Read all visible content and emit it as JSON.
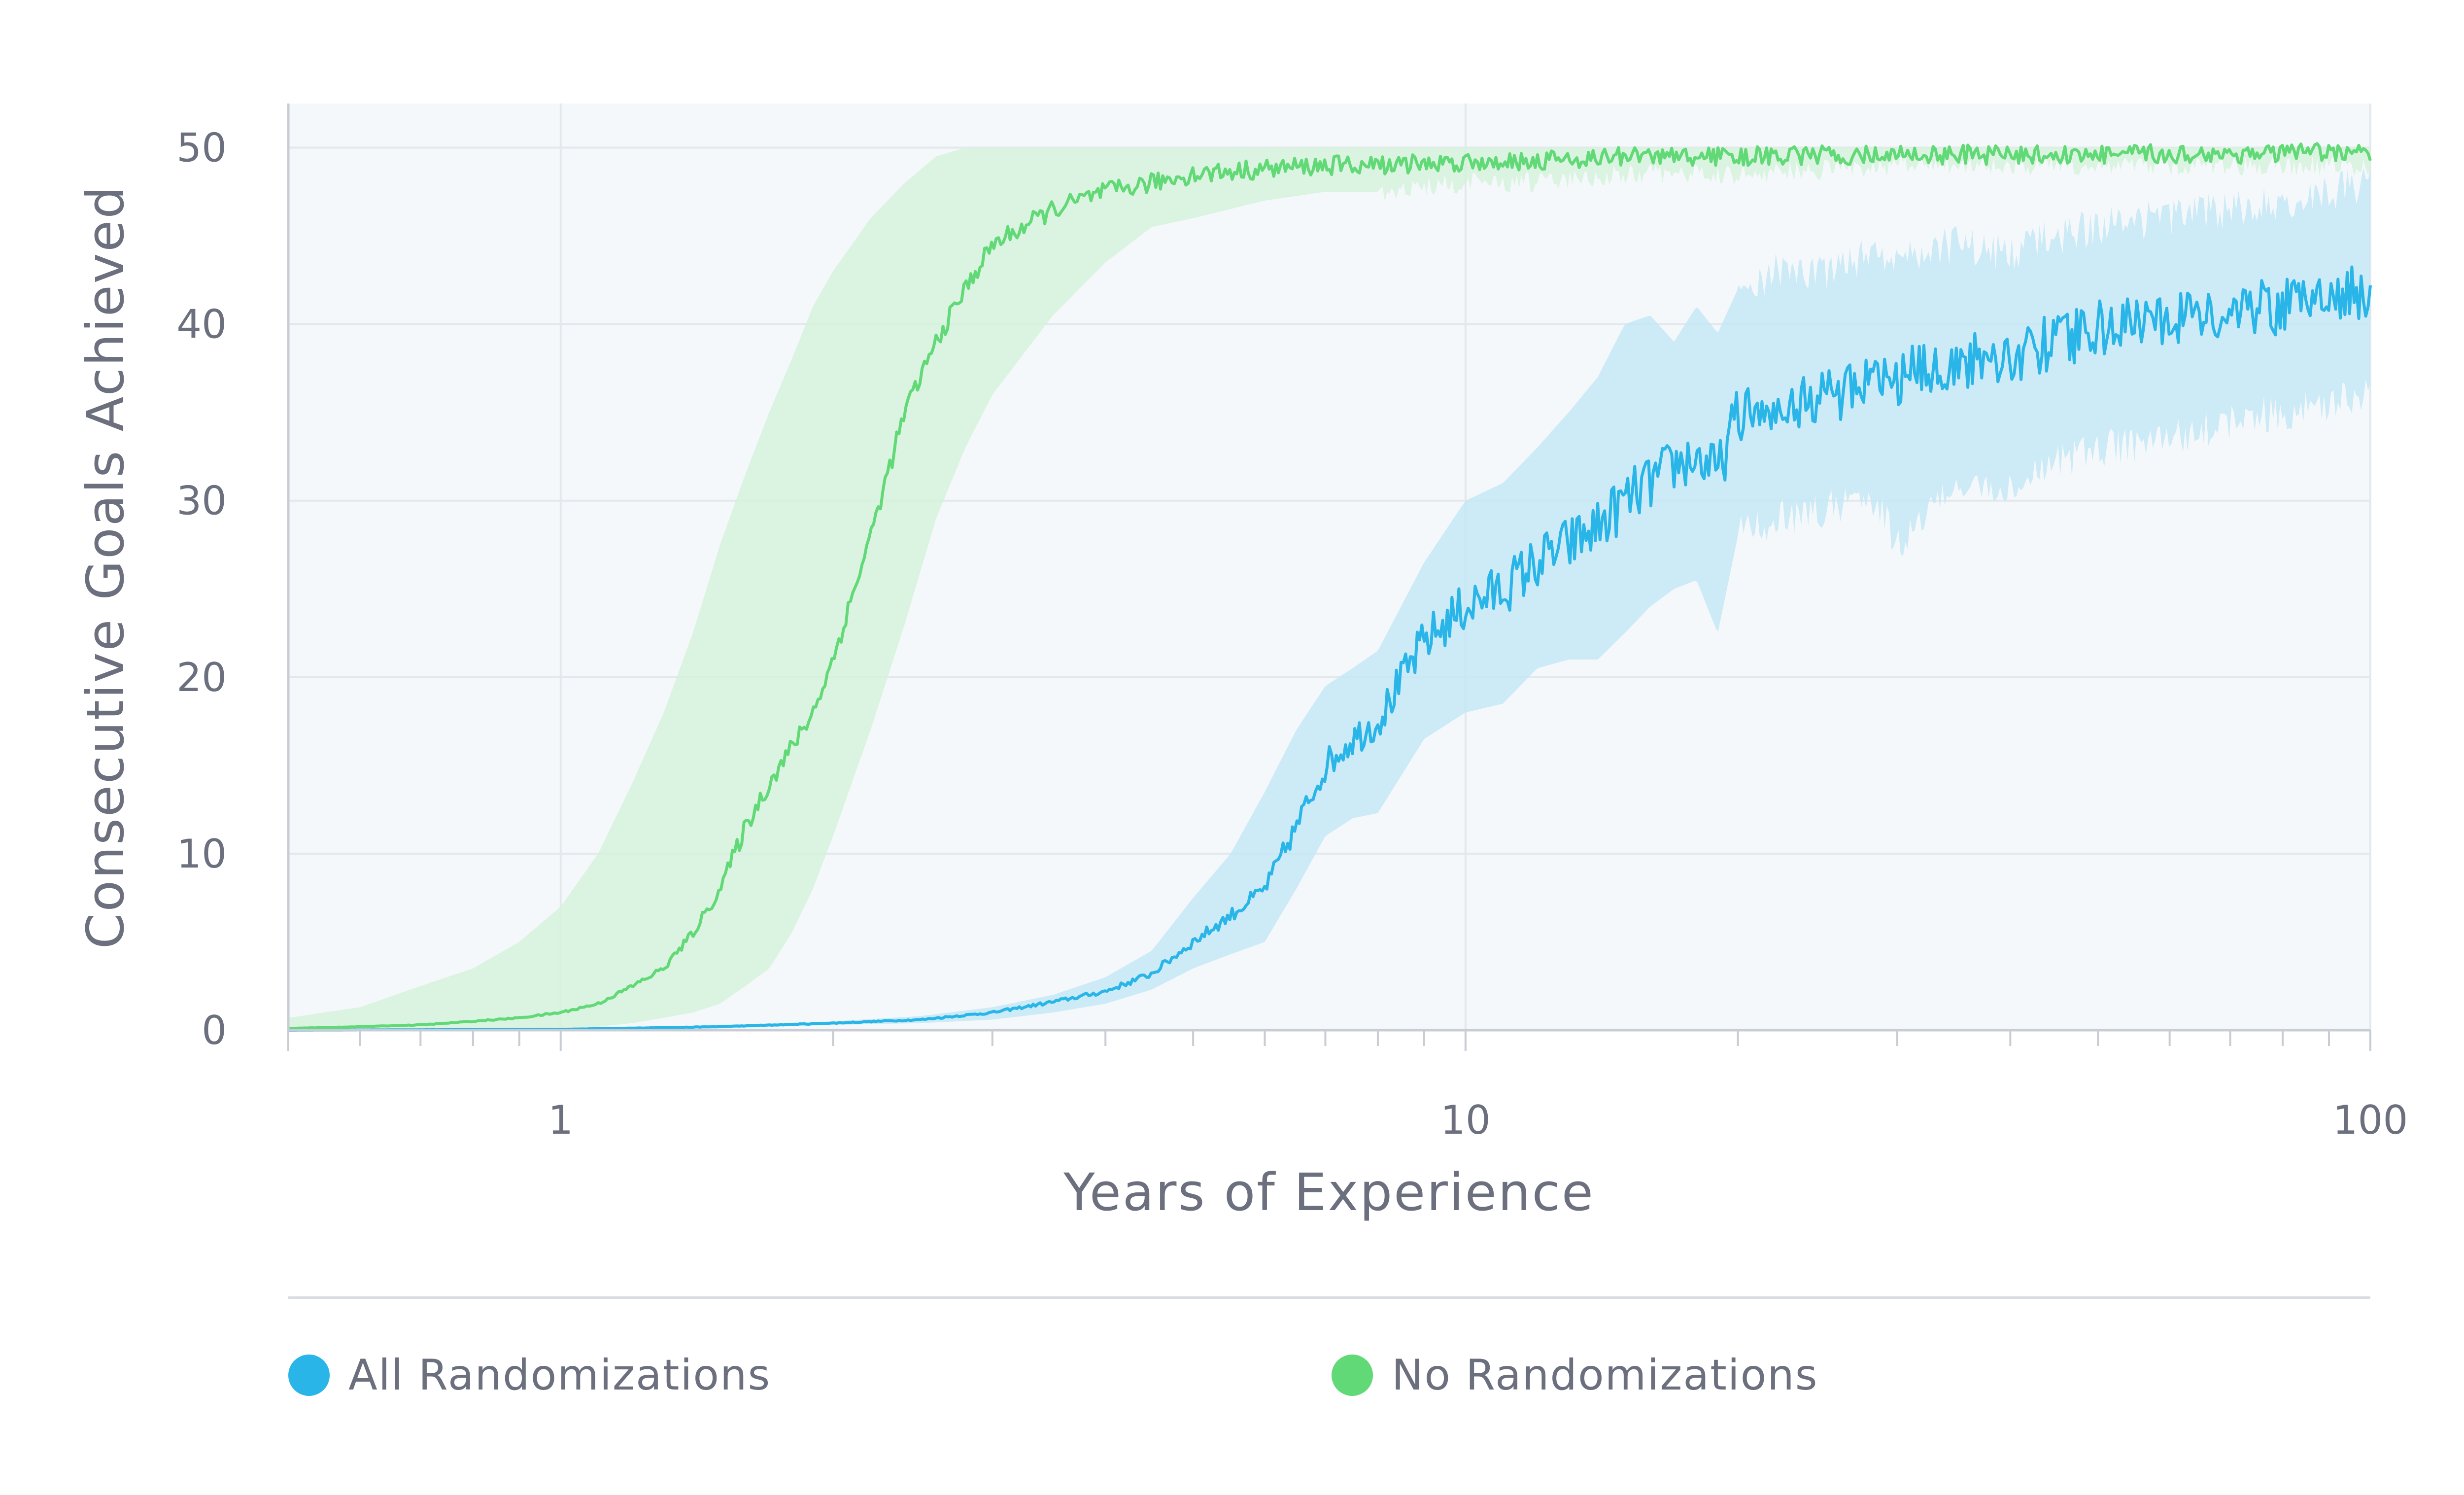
{
  "chart_data": {
    "type": "line",
    "xlabel": "Years of Experience",
    "ylabel": "Consecutive Goals Achieved",
    "xscale": "log",
    "xlim": [
      0.5,
      100
    ],
    "ylim": [
      0,
      52.5
    ],
    "xticks_major": [
      {
        "value": 1,
        "label": "1"
      },
      {
        "value": 10,
        "label": "10"
      },
      {
        "value": 100,
        "label": "100"
      }
    ],
    "yticks": [
      {
        "value": 0,
        "label": "0"
      },
      {
        "value": 10,
        "label": "10"
      },
      {
        "value": 20,
        "label": "20"
      },
      {
        "value": 30,
        "label": "30"
      },
      {
        "value": 40,
        "label": "40"
      },
      {
        "value": 50,
        "label": "50"
      }
    ],
    "grid": true,
    "legend_position": "bottom",
    "background_color": "#f4f8fa",
    "series": [
      {
        "name": "All Randomizations",
        "color": "#29b5e8",
        "band_color": "#c5e8f6",
        "x": [
          0.5,
          1,
          1.5,
          2,
          2.5,
          3,
          3.5,
          4,
          4.5,
          5,
          5.5,
          6,
          6.5,
          7,
          7.5,
          8,
          9,
          10,
          11,
          12,
          13,
          14,
          15,
          16,
          17,
          18,
          19,
          20,
          22,
          25,
          28,
          30,
          35,
          40,
          45,
          50,
          60,
          70,
          80,
          90,
          100
        ],
        "mean": [
          0,
          0.05,
          0.2,
          0.4,
          0.6,
          1.0,
          1.6,
          2.2,
          3.2,
          5.0,
          6.5,
          8.0,
          11.5,
          15.0,
          16.5,
          17.5,
          22.0,
          24.0,
          25.0,
          26.5,
          27.5,
          28.5,
          30.0,
          31.0,
          32.0,
          32.5,
          31.5,
          35.0,
          35.5,
          36.0,
          36.5,
          37.0,
          37.8,
          38.3,
          39.0,
          39.8,
          40.3,
          40.8,
          41.0,
          41.5,
          42.0
        ],
        "upper": [
          0,
          0.1,
          0.3,
          0.5,
          0.8,
          1.3,
          2.0,
          3.0,
          4.5,
          7.5,
          10.0,
          13.5,
          17.0,
          19.5,
          20.5,
          21.5,
          26.5,
          30.0,
          31.0,
          33.0,
          35.0,
          37.0,
          40.0,
          40.5,
          39.0,
          41.0,
          39.5,
          42.0,
          43.0,
          43.0,
          44.0,
          44.0,
          44.5,
          44.0,
          45.0,
          45.5,
          46.0,
          46.5,
          47.0,
          47.5,
          48.0
        ],
        "lower": [
          0,
          0.0,
          0.1,
          0.3,
          0.4,
          0.6,
          1.0,
          1.5,
          2.3,
          3.5,
          4.3,
          5.0,
          8.0,
          11.0,
          12.0,
          12.3,
          16.5,
          18.0,
          18.5,
          20.5,
          21.0,
          21.0,
          22.5,
          24.0,
          25.0,
          25.5,
          22.5,
          28.0,
          29.0,
          29.5,
          30.5,
          27.5,
          31.0,
          30.5,
          32.0,
          33.0,
          33.5,
          34.5,
          35.0,
          35.5,
          36.0
        ]
      },
      {
        "name": "No Randomizations",
        "color": "#62d977",
        "band_color": "#d6f2dc",
        "x": [
          0.5,
          0.6,
          0.7,
          0.8,
          0.9,
          1.0,
          1.1,
          1.2,
          1.3,
          1.4,
          1.5,
          1.6,
          1.7,
          1.8,
          1.9,
          2.0,
          2.2,
          2.4,
          2.6,
          2.8,
          3.0,
          3.5,
          4.0,
          4.5,
          5.0,
          6.0,
          7.0,
          8.0,
          10,
          12,
          15,
          20,
          30,
          50,
          100
        ],
        "mean": [
          0.1,
          0.2,
          0.3,
          0.5,
          0.7,
          1.0,
          1.5,
          2.5,
          3.5,
          5.5,
          8.0,
          11.5,
          14.0,
          16.0,
          18.0,
          21.0,
          28.0,
          35.0,
          39.0,
          42.0,
          44.5,
          46.5,
          47.5,
          48.0,
          48.5,
          48.8,
          49.0,
          49.0,
          49.2,
          49.3,
          49.5,
          49.5,
          49.6,
          49.6,
          49.7
        ],
        "upper": [
          0.7,
          1.3,
          2.5,
          3.5,
          5.0,
          7.0,
          10.0,
          14.0,
          18.0,
          22.5,
          27.5,
          31.5,
          35.0,
          38.0,
          41.0,
          43.0,
          46.0,
          48.0,
          49.5,
          50.0,
          50.0,
          50.0,
          50.0,
          50.0,
          50.0,
          50.0,
          50.0,
          50.0,
          50.0,
          50.0,
          50.0,
          50.0,
          50.0,
          50.0,
          50.0
        ],
        "lower": [
          0,
          0,
          0,
          0,
          0,
          0.1,
          0.2,
          0.4,
          0.7,
          1.0,
          1.5,
          2.5,
          3.5,
          5.5,
          8.0,
          11.0,
          17.0,
          23.0,
          29.0,
          33.0,
          36.0,
          40.5,
          43.5,
          45.5,
          46.0,
          47.0,
          47.5,
          47.5,
          48.0,
          48.0,
          48.5,
          48.5,
          49.0,
          49.0,
          49.0
        ]
      }
    ]
  },
  "legend": {
    "items": [
      {
        "label": "All Randomizations",
        "color": "#29b5e8"
      },
      {
        "label": "No Randomizations",
        "color": "#62d977"
      }
    ]
  }
}
